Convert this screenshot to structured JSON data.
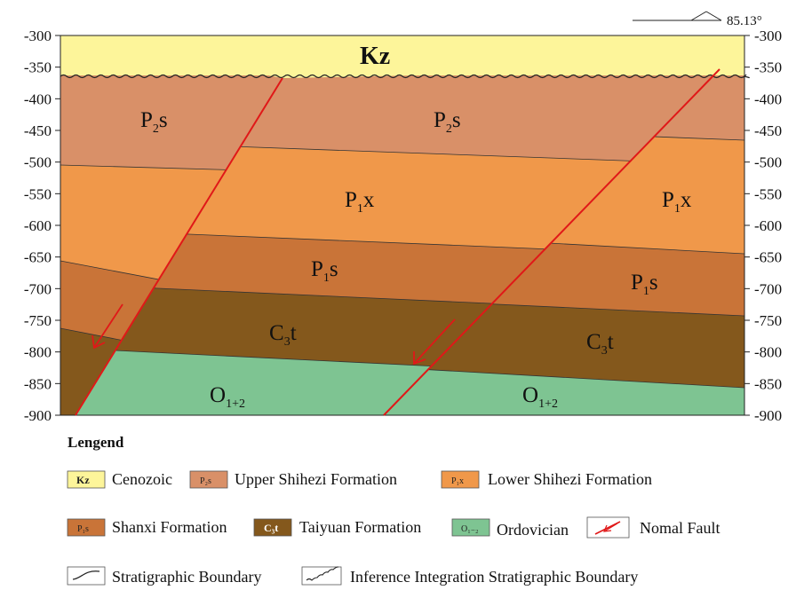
{
  "dip": {
    "angle_label": "85.13°"
  },
  "axis": {
    "ticks": [
      "-300",
      "-350",
      "-400",
      "-450",
      "-500",
      "-550",
      "-600",
      "-650",
      "-700",
      "-750",
      "-800",
      "-850",
      "-900"
    ]
  },
  "colors": {
    "Kz": "#fdf59a",
    "P2s": "#d99068",
    "P1x": "#f0984a",
    "P1s": "#c97438",
    "C3t": "#84581c",
    "O12": "#7ec492",
    "fault": "#e01818"
  },
  "units": {
    "kz": "Kz",
    "p2s_left": {
      "base": "P",
      "sub": "2",
      "rest": "s"
    },
    "p2s_mid": {
      "base": "P",
      "sub": "2",
      "rest": "s"
    },
    "p1x_mid": {
      "base": "P",
      "sub": "1",
      "rest": "x"
    },
    "p1x_right": {
      "base": "P",
      "sub": "1",
      "rest": "x"
    },
    "p1s_mid": {
      "base": "P",
      "sub": "1",
      "rest": "s"
    },
    "p1s_right": {
      "base": "P",
      "sub": "1",
      "rest": "s"
    },
    "c3t_mid": {
      "base": "C",
      "sub": "3",
      "rest": "t"
    },
    "c3t_right": {
      "base": "C",
      "sub": "3",
      "rest": "t"
    },
    "o_mid": {
      "base": "O",
      "sub": "1+2",
      "rest": ""
    },
    "o_right": {
      "base": "O",
      "sub": "1+2",
      "rest": ""
    }
  },
  "legend": {
    "title": "Lengend",
    "items": [
      {
        "code": "Kz",
        "label": "Cenozoic",
        "swatch": "Kz"
      },
      {
        "code": "P2s",
        "label": "Upper  Shihezi  Formation",
        "swatch": "P₂s"
      },
      {
        "code": "P1x",
        "label": "Lower  Shihezi  Formation",
        "swatch": "P₁x"
      },
      {
        "code": "P1s",
        "label": "Shanxi  Formation",
        "swatch": "P₁s"
      },
      {
        "code": "C3t",
        "label": "Taiyuan  Formation",
        "swatch": "C₃t"
      },
      {
        "code": "O12",
        "label": "Ordovician",
        "swatch": "O₁₋₂"
      },
      {
        "code": "fault",
        "label": "Nomal  Fault"
      },
      {
        "code": "boundary",
        "label": "Stratigraphic  Boundary"
      },
      {
        "code": "unconformity",
        "label": "Inference  Integration Stratigraphic  Boundary"
      }
    ]
  }
}
